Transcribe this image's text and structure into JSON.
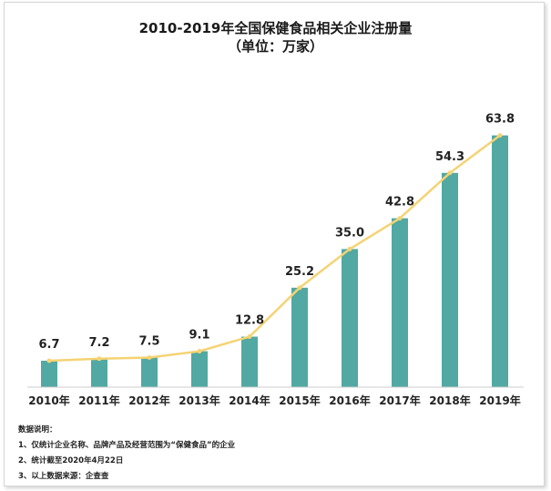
{
  "chart_data": {
    "type": "bar",
    "title": "2010-2019年全国保健食品相关企业注册量",
    "subtitle": "（单位：万家）",
    "categories": [
      "2010年",
      "2011年",
      "2012年",
      "2013年",
      "2014年",
      "2015年",
      "2016年",
      "2017年",
      "2018年",
      "2019年"
    ],
    "values": [
      6.7,
      7.2,
      7.5,
      9.1,
      12.8,
      25.2,
      35.0,
      42.8,
      54.3,
      63.8
    ],
    "value_labels": [
      "6.7",
      "7.2",
      "7.5",
      "9.1",
      "12.8",
      "25.2",
      "35.0",
      "42.8",
      "54.3",
      "63.8"
    ],
    "overlay_line": true,
    "bar_color": "#52a8a2",
    "line_color": "#f5d374",
    "grid": false,
    "ylim": [
      0,
      70
    ]
  },
  "notes": {
    "heading": "数据说明：",
    "items": [
      "1、仅统计企业名称、品牌产品及经营范围为“保健食品”的企业",
      "2、统计截至2020年4月22日",
      "3、以上数据来源：企查查"
    ]
  }
}
